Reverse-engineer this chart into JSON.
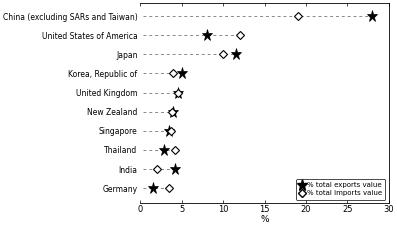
{
  "categories": [
    "China (excluding SARs and Taiwan)",
    "United States of America",
    "Japan",
    "Korea, Republic of",
    "United Kingdom",
    "New Zealand",
    "Singapore",
    "Thailand",
    "India",
    "Germany"
  ],
  "exports": [
    28.0,
    8.0,
    11.5,
    5.0,
    4.5,
    4.0,
    3.5,
    2.8,
    4.2,
    1.5
  ],
  "imports": [
    19.0,
    12.0,
    10.0,
    4.0,
    4.6,
    3.8,
    3.7,
    4.2,
    2.0,
    3.5
  ],
  "xlim": [
    0,
    30
  ],
  "xticks": [
    0,
    5,
    10,
    15,
    20,
    25,
    30
  ],
  "xlabel": "%",
  "legend_exports": "% total exports value",
  "legend_imports": "% total imports value",
  "bg_color": "#ffffff",
  "line_color": "#888888",
  "marker_size": 4.5
}
